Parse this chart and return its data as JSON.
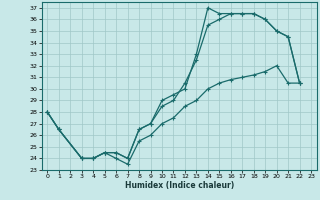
{
  "xlabel": "Humidex (Indice chaleur)",
  "bg_color": "#c8e8e8",
  "grid_color": "#a0c8c8",
  "line_color": "#1a6b6b",
  "xlim": [
    -0.5,
    23.5
  ],
  "ylim": [
    23,
    37.5
  ],
  "xticks": [
    0,
    1,
    2,
    3,
    4,
    5,
    6,
    7,
    8,
    9,
    10,
    11,
    12,
    13,
    14,
    15,
    16,
    17,
    18,
    19,
    20,
    21,
    22,
    23
  ],
  "yticks": [
    23,
    24,
    25,
    26,
    27,
    28,
    29,
    30,
    31,
    32,
    33,
    34,
    35,
    36,
    37
  ],
  "curve1_x": [
    0,
    1,
    3,
    4,
    5,
    6,
    7,
    8,
    9,
    10,
    11,
    12,
    13,
    14,
    15,
    16,
    17,
    18,
    19,
    20,
    21,
    22
  ],
  "curve1_y": [
    28,
    26.5,
    24,
    24,
    24.5,
    24.5,
    24,
    26.5,
    27,
    29,
    29.5,
    30,
    33,
    37,
    36.5,
    36.5,
    36.5,
    36.5,
    36,
    35,
    34.5,
    30.5
  ],
  "curve2_x": [
    0,
    1,
    3,
    4,
    5,
    6,
    7,
    8,
    9,
    10,
    11,
    12,
    13,
    14,
    15,
    16,
    17,
    18,
    19,
    20,
    21,
    22
  ],
  "curve2_y": [
    28,
    26.5,
    24,
    24,
    24.5,
    24.5,
    24,
    26.5,
    27,
    28.5,
    29,
    30.5,
    32.5,
    35.5,
    36,
    36.5,
    36.5,
    36.5,
    36,
    35,
    34.5,
    30.5
  ],
  "curve3_x": [
    0,
    1,
    3,
    4,
    5,
    6,
    7,
    8,
    9,
    10,
    11,
    12,
    13,
    14,
    15,
    16,
    17,
    18,
    19,
    20,
    21,
    22
  ],
  "curve3_y": [
    28,
    26.5,
    24,
    24,
    24.5,
    24,
    23.5,
    25.5,
    26,
    27,
    27.5,
    28.5,
    29,
    30,
    30.5,
    30.8,
    31,
    31.2,
    31.5,
    32,
    30.5,
    30.5
  ]
}
